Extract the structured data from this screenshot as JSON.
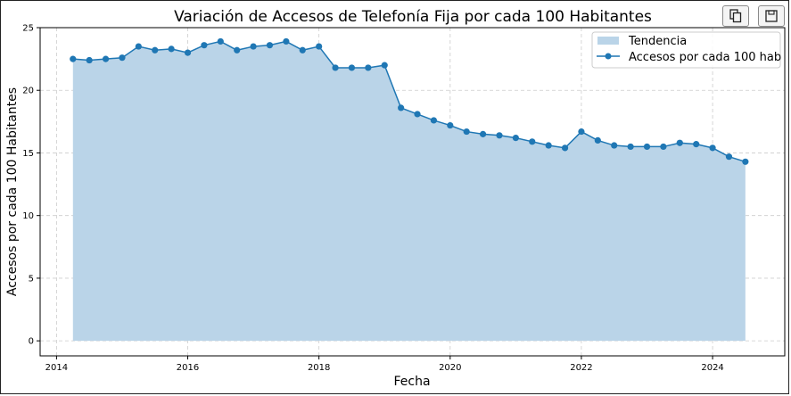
{
  "toolbar": {
    "copy_icon": "copy-icon",
    "save_icon": "save-icon"
  },
  "chart_data": {
    "type": "area",
    "title": "Variación de Accesos de Telefonía Fija por cada 100 Habitantes",
    "xlabel": "Fecha",
    "ylabel": "Accesos por cada 100 Habitantes",
    "xlim": [
      2013.75,
      2025.1
    ],
    "ylim": [
      -1.2,
      25
    ],
    "xticks": [
      2014,
      2016,
      2018,
      2020,
      2022,
      2024
    ],
    "xtick_labels": [
      "2014",
      "2016",
      "2018",
      "2020",
      "2022",
      "2024"
    ],
    "yticks": [
      0,
      5,
      10,
      15,
      20,
      25
    ],
    "ytick_labels": [
      "0",
      "5",
      "10",
      "15",
      "20",
      "25"
    ],
    "grid": true,
    "legend_position": "top-right",
    "colors": {
      "line": "#1f77b4",
      "fill": "#bad4e8",
      "grid": "#cccccc"
    },
    "series": [
      {
        "name": "Tendencia",
        "kind": "area"
      },
      {
        "name": "Accesos por cada 100 hab",
        "kind": "line-marker"
      }
    ],
    "x": [
      2014.25,
      2014.5,
      2014.75,
      2015.0,
      2015.25,
      2015.5,
      2015.75,
      2016.0,
      2016.25,
      2016.5,
      2016.75,
      2017.0,
      2017.25,
      2017.5,
      2017.75,
      2018.0,
      2018.25,
      2018.5,
      2018.75,
      2019.0,
      2019.25,
      2019.5,
      2019.75,
      2020.0,
      2020.25,
      2020.5,
      2020.75,
      2021.0,
      2021.25,
      2021.5,
      2021.75,
      2022.0,
      2022.25,
      2022.5,
      2022.75,
      2023.0,
      2023.25,
      2023.5,
      2023.75,
      2024.0,
      2024.25,
      2024.5
    ],
    "y": [
      22.5,
      22.4,
      22.5,
      22.6,
      23.5,
      23.2,
      23.3,
      23.0,
      23.6,
      23.9,
      23.2,
      23.5,
      23.6,
      23.9,
      23.2,
      23.5,
      21.8,
      21.8,
      21.8,
      22.0,
      18.6,
      18.1,
      17.6,
      17.2,
      16.7,
      16.5,
      16.4,
      16.2,
      15.9,
      15.6,
      15.4,
      16.7,
      16.0,
      15.6,
      15.5,
      15.5,
      15.5,
      15.8,
      15.7,
      15.4,
      14.7,
      14.3
    ]
  }
}
